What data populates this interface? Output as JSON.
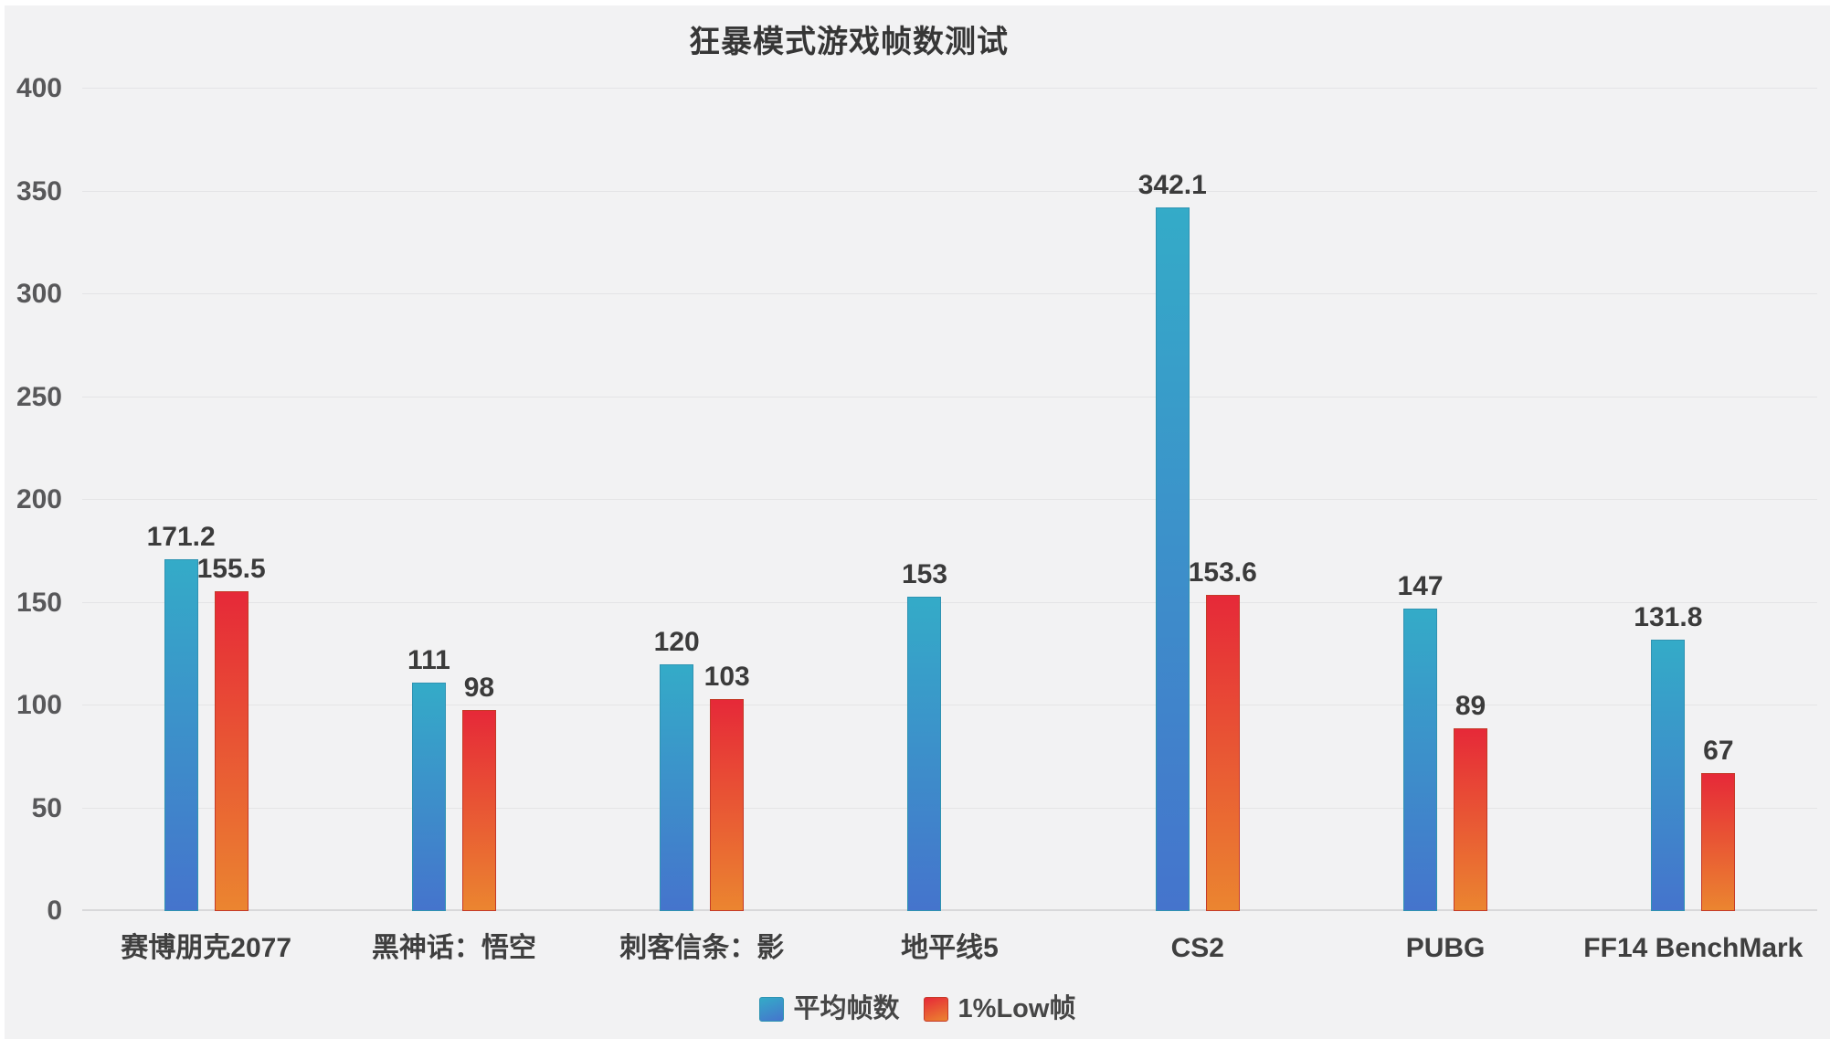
{
  "title": "狂暴模式游戏帧数测试",
  "chart_data": {
    "type": "bar",
    "title": "狂暴模式游戏帧数测试",
    "categories": [
      "赛博朋克2077",
      "黑神话：悟空",
      "刺客信条：影",
      "地平线5",
      "CS2",
      "PUBG",
      "FF14 BenchMark"
    ],
    "series": [
      {
        "name": "平均帧数",
        "values": [
          171.2,
          111,
          120,
          153,
          342.1,
          147,
          131.8
        ],
        "color_top": "#34abc8",
        "color_bottom": "#4574cc",
        "border_color": "#2e93b2"
      },
      {
        "name": "1%Low帧",
        "values": [
          155.5,
          98,
          103,
          null,
          153.6,
          89,
          67
        ],
        "color_top": "#e62938",
        "color_bottom": "#eb8530",
        "border_color": "#c43a28"
      }
    ],
    "ylim": [
      0,
      400
    ],
    "ytick_step": 50,
    "grid": true,
    "legend_position": "bottom",
    "xlabel": "",
    "ylabel": ""
  },
  "colors": {
    "page_background": "#ffffff",
    "chart_background": "#f2f2f3",
    "gridline": "#e4e4e6",
    "baseline": "#d8d8da",
    "title_text": "#363636",
    "tick_text": "#58585a",
    "value_text": "#3b3b3b",
    "category_text": "#3f3f3f",
    "legend_text": "#464646"
  }
}
